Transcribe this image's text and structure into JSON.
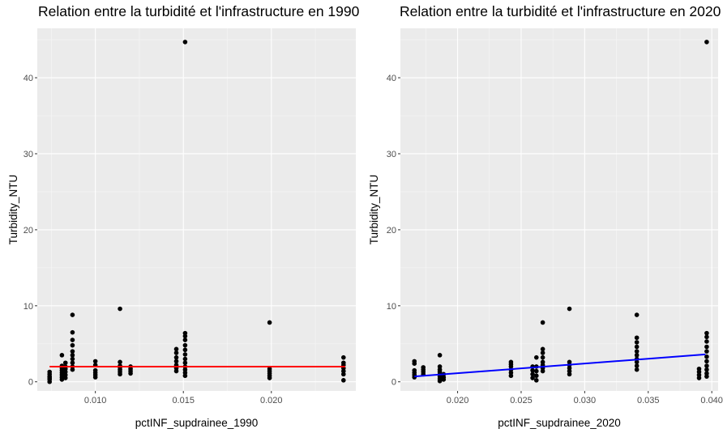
{
  "chart_data": [
    {
      "type": "scatter",
      "title": "Relation entre la turbidité et l'infrastructure en 1990",
      "xlabel": "pctINF_supdrainee_1990",
      "ylabel": "Turbidity_NTU",
      "xlim": [
        0.0067,
        0.0248
      ],
      "ylim": [
        -1.2,
        46.5
      ],
      "x_ticks": [
        0.01,
        0.015,
        0.02
      ],
      "x_tick_labels": [
        "0.010",
        "0.015",
        "0.020"
      ],
      "y_ticks": [
        0,
        10,
        20,
        30,
        40
      ],
      "y_tick_labels": [
        "0",
        "10",
        "20",
        "30",
        "40"
      ],
      "grid": true,
      "trend_line": {
        "color": "#ff0000",
        "x": [
          0.0074,
          0.0242
        ],
        "y": [
          2.0,
          2.0
        ]
      },
      "series": [
        {
          "points": [
            [
              0.0074,
              0.0
            ],
            [
              0.0074,
              0.3
            ],
            [
              0.0074,
              0.5
            ],
            [
              0.0074,
              0.7
            ],
            [
              0.0074,
              1.0
            ],
            [
              0.0074,
              1.3
            ],
            [
              0.0081,
              0.3
            ],
            [
              0.0081,
              0.6
            ],
            [
              0.0081,
              0.9
            ],
            [
              0.0081,
              1.2
            ],
            [
              0.0081,
              1.5
            ],
            [
              0.0081,
              1.8
            ],
            [
              0.0081,
              2.1
            ],
            [
              0.0081,
              3.5
            ],
            [
              0.0083,
              0.5
            ],
            [
              0.0083,
              0.9
            ],
            [
              0.0083,
              1.3
            ],
            [
              0.0083,
              1.7
            ],
            [
              0.0083,
              2.0
            ],
            [
              0.0083,
              2.5
            ],
            [
              0.0087,
              1.6
            ],
            [
              0.0087,
              2.0
            ],
            [
              0.0087,
              2.5
            ],
            [
              0.0087,
              3.0
            ],
            [
              0.0087,
              3.5
            ],
            [
              0.0087,
              4.0
            ],
            [
              0.0087,
              4.8
            ],
            [
              0.0087,
              5.5
            ],
            [
              0.0087,
              6.5
            ],
            [
              0.0087,
              8.8
            ],
            [
              0.01,
              0.6
            ],
            [
              0.01,
              0.9
            ],
            [
              0.01,
              1.2
            ],
            [
              0.01,
              1.5
            ],
            [
              0.01,
              2.2
            ],
            [
              0.01,
              2.7
            ],
            [
              0.0114,
              1.0
            ],
            [
              0.0114,
              1.3
            ],
            [
              0.0114,
              1.6
            ],
            [
              0.0114,
              1.9
            ],
            [
              0.0114,
              2.1
            ],
            [
              0.0114,
              2.6
            ],
            [
              0.0114,
              9.6
            ],
            [
              0.012,
              1.1
            ],
            [
              0.012,
              1.4
            ],
            [
              0.012,
              1.7
            ],
            [
              0.012,
              2.0
            ],
            [
              0.0146,
              1.4
            ],
            [
              0.0146,
              1.8
            ],
            [
              0.0146,
              2.2
            ],
            [
              0.0146,
              2.7
            ],
            [
              0.0146,
              3.2
            ],
            [
              0.0146,
              3.8
            ],
            [
              0.0146,
              4.3
            ],
            [
              0.0151,
              0.8
            ],
            [
              0.0151,
              1.2
            ],
            [
              0.0151,
              1.6
            ],
            [
              0.0151,
              2.0
            ],
            [
              0.0151,
              2.5
            ],
            [
              0.0151,
              3.0
            ],
            [
              0.0151,
              3.6
            ],
            [
              0.0151,
              4.2
            ],
            [
              0.0151,
              4.8
            ],
            [
              0.0151,
              5.5
            ],
            [
              0.0151,
              6.0
            ],
            [
              0.0151,
              6.4
            ],
            [
              0.0151,
              44.7
            ],
            [
              0.0199,
              0.5
            ],
            [
              0.0199,
              0.8
            ],
            [
              0.0199,
              1.1
            ],
            [
              0.0199,
              1.4
            ],
            [
              0.0199,
              1.7
            ],
            [
              0.0199,
              7.8
            ],
            [
              0.0241,
              0.2
            ],
            [
              0.0241,
              1.0
            ],
            [
              0.0241,
              1.4
            ],
            [
              0.0241,
              1.8
            ],
            [
              0.0241,
              2.2
            ],
            [
              0.0241,
              2.5
            ],
            [
              0.0241,
              3.2
            ]
          ]
        }
      ]
    },
    {
      "type": "scatter",
      "title": "Relation entre la turbidité et l'infrastructure en 2020",
      "xlabel": "pctINF_supdrainee_2020",
      "ylabel": "Turbidity_NTU",
      "xlim": [
        0.0155,
        0.0405
      ],
      "ylim": [
        -1.2,
        46.5
      ],
      "x_ticks": [
        0.02,
        0.025,
        0.03,
        0.035,
        0.04
      ],
      "x_tick_labels": [
        "0.020",
        "0.025",
        "0.030",
        "0.035",
        "0.040"
      ],
      "y_ticks": [
        0,
        10,
        20,
        30,
        40
      ],
      "y_tick_labels": [
        "0",
        "10",
        "20",
        "30",
        "40"
      ],
      "grid": true,
      "trend_line": {
        "color": "#0000ff",
        "x": [
          0.0166,
          0.0395
        ],
        "y": [
          0.7,
          3.6
        ]
      },
      "series": [
        {
          "points": [
            [
              0.0166,
              0.6
            ],
            [
              0.0166,
              0.9
            ],
            [
              0.0166,
              1.2
            ],
            [
              0.0166,
              1.5
            ],
            [
              0.0166,
              2.4
            ],
            [
              0.0166,
              2.7
            ],
            [
              0.0173,
              1.0
            ],
            [
              0.0173,
              1.3
            ],
            [
              0.0173,
              1.6
            ],
            [
              0.0173,
              1.9
            ],
            [
              0.0186,
              0.1
            ],
            [
              0.0186,
              0.4
            ],
            [
              0.0186,
              0.7
            ],
            [
              0.0186,
              1.0
            ],
            [
              0.0186,
              1.3
            ],
            [
              0.0186,
              1.6
            ],
            [
              0.0186,
              2.0
            ],
            [
              0.0186,
              3.5
            ],
            [
              0.0189,
              0.3
            ],
            [
              0.0189,
              0.6
            ],
            [
              0.0189,
              1.0
            ],
            [
              0.0242,
              0.8
            ],
            [
              0.0242,
              1.2
            ],
            [
              0.0242,
              1.6
            ],
            [
              0.0242,
              2.0
            ],
            [
              0.0242,
              2.3
            ],
            [
              0.0242,
              2.6
            ],
            [
              0.0259,
              0.5
            ],
            [
              0.0259,
              1.0
            ],
            [
              0.0259,
              1.5
            ],
            [
              0.0259,
              2.0
            ],
            [
              0.0262,
              0.2
            ],
            [
              0.0262,
              0.8
            ],
            [
              0.0262,
              1.4
            ],
            [
              0.0262,
              2.0
            ],
            [
              0.0262,
              3.2
            ],
            [
              0.0267,
              1.4
            ],
            [
              0.0267,
              1.8
            ],
            [
              0.0267,
              2.2
            ],
            [
              0.0267,
              2.6
            ],
            [
              0.0267,
              3.2
            ],
            [
              0.0267,
              3.8
            ],
            [
              0.0267,
              4.3
            ],
            [
              0.0267,
              7.8
            ],
            [
              0.0288,
              1.0
            ],
            [
              0.0288,
              1.4
            ],
            [
              0.0288,
              1.8
            ],
            [
              0.0288,
              2.2
            ],
            [
              0.0288,
              2.6
            ],
            [
              0.0288,
              9.6
            ],
            [
              0.0341,
              1.6
            ],
            [
              0.0341,
              2.1
            ],
            [
              0.0341,
              2.6
            ],
            [
              0.0341,
              3.0
            ],
            [
              0.0341,
              3.5
            ],
            [
              0.0341,
              4.0
            ],
            [
              0.0341,
              4.6
            ],
            [
              0.0341,
              5.2
            ],
            [
              0.0341,
              5.8
            ],
            [
              0.0341,
              8.8
            ],
            [
              0.039,
              0.5
            ],
            [
              0.039,
              0.9
            ],
            [
              0.039,
              1.3
            ],
            [
              0.039,
              1.7
            ],
            [
              0.0396,
              0.7
            ],
            [
              0.0396,
              1.1
            ],
            [
              0.0396,
              1.6
            ],
            [
              0.0396,
              2.1
            ],
            [
              0.0396,
              2.7
            ],
            [
              0.0396,
              3.3
            ],
            [
              0.0396,
              4.0
            ],
            [
              0.0396,
              4.6
            ],
            [
              0.0396,
              5.3
            ],
            [
              0.0396,
              5.9
            ],
            [
              0.0396,
              6.4
            ],
            [
              0.0396,
              44.7
            ]
          ]
        }
      ]
    }
  ]
}
